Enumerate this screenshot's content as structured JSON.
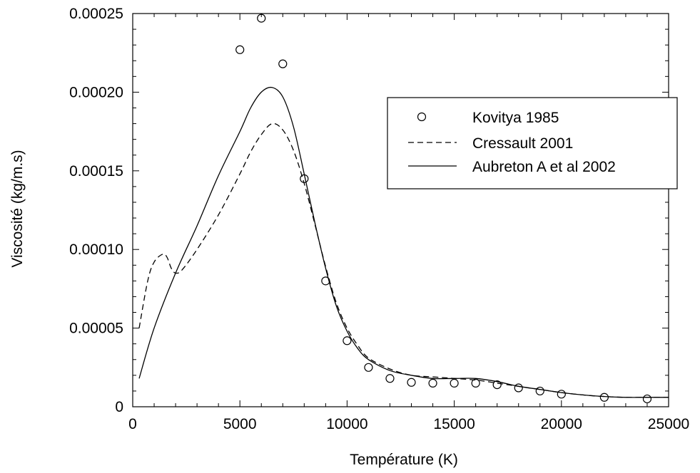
{
  "chart_data": {
    "type": "scatter",
    "xlabel": "Température (K)",
    "ylabel": "Viscosité (kg/m.s)",
    "xlim": [
      0,
      25000
    ],
    "ylim": [
      0,
      0.00025
    ],
    "x_ticks": [
      {
        "value": 0,
        "label": "0"
      },
      {
        "value": 5000,
        "label": "5000"
      },
      {
        "value": 10000,
        "label": "10000"
      },
      {
        "value": 15000,
        "label": "15000"
      },
      {
        "value": 20000,
        "label": "20000"
      },
      {
        "value": 25000,
        "label": "25000"
      }
    ],
    "y_ticks": [
      {
        "value": 0,
        "label": "0"
      },
      {
        "value": 5e-05,
        "label": "0.00005"
      },
      {
        "value": 0.0001,
        "label": "0.00010"
      },
      {
        "value": 0.00015,
        "label": "0.00015"
      },
      {
        "value": 0.0002,
        "label": "0.00020"
      },
      {
        "value": 0.00025,
        "label": "0.00025"
      }
    ],
    "grid": false,
    "legend_position": "top-right",
    "series": [
      {
        "name": "Kovitya 1985",
        "style": "circle-markers",
        "x": [
          5000,
          6000,
          7000,
          8000,
          9000,
          10000,
          11000,
          12000,
          13000,
          14000,
          15000,
          16000,
          17000,
          18000,
          19000,
          20000,
          22000,
          24000
        ],
        "y": [
          0.000227,
          0.000247,
          0.000218,
          0.000145,
          8e-05,
          4.2e-05,
          2.5e-05,
          1.8e-05,
          1.55e-05,
          1.5e-05,
          1.5e-05,
          1.5e-05,
          1.4e-05,
          1.2e-05,
          1e-05,
          8e-06,
          6e-06,
          5e-06
        ]
      },
      {
        "name": "Cressault 2001",
        "style": "dashed-line",
        "x": [
          300,
          700,
          1000,
          1400,
          1600,
          1800,
          2000,
          2300,
          3000,
          4000,
          5000,
          5500,
          6000,
          6500,
          7000,
          7500,
          8000,
          8500,
          9000,
          9500,
          10000,
          10500,
          11000,
          12000,
          13000,
          14000,
          15000,
          16000,
          17000,
          18000,
          19000,
          20000,
          21000,
          22000,
          23000,
          24000,
          25000
        ],
        "y": [
          5e-05,
          8e-05,
          9.2e-05,
          9.7e-05,
          9.5e-05,
          8.8e-05,
          8.5e-05,
          8.7e-05,
          0.0001,
          0.000122,
          0.000148,
          0.000162,
          0.000173,
          0.00018,
          0.000176,
          0.000163,
          0.000142,
          0.000116,
          8.9e-05,
          6.6e-05,
          5e-05,
          3.9e-05,
          3.1e-05,
          2.4e-05,
          2e-05,
          1.9e-05,
          1.8e-05,
          1.7e-05,
          1.5e-05,
          1.3e-05,
          1.1e-05,
          9e-06,
          7.5e-06,
          6.5e-06,
          6e-06,
          6e-06,
          6e-06
        ]
      },
      {
        "name": "Aubreton A et al 2002",
        "style": "solid-line",
        "x": [
          300,
          1000,
          2000,
          3000,
          4000,
          5000,
          5500,
          6000,
          6500,
          7000,
          7500,
          8000,
          8500,
          9000,
          9500,
          10000,
          10500,
          11000,
          12000,
          13000,
          14000,
          15000,
          16000,
          17000,
          18000,
          19000,
          20000,
          21000,
          22000,
          23000,
          24000,
          25000
        ],
        "y": [
          1.8e-05,
          5e-05,
          8.5e-05,
          0.000115,
          0.000147,
          0.000175,
          0.00019,
          0.0002,
          0.000203,
          0.000197,
          0.000178,
          0.000148,
          0.000117,
          8.8e-05,
          6.4e-05,
          4.8e-05,
          3.7e-05,
          3e-05,
          2.3e-05,
          2e-05,
          1.8e-05,
          1.8e-05,
          1.8e-05,
          1.6e-05,
          1.3e-05,
          1.1e-05,
          9e-06,
          7.5e-06,
          6.5e-06,
          6e-06,
          6e-06,
          6e-06
        ]
      }
    ]
  }
}
